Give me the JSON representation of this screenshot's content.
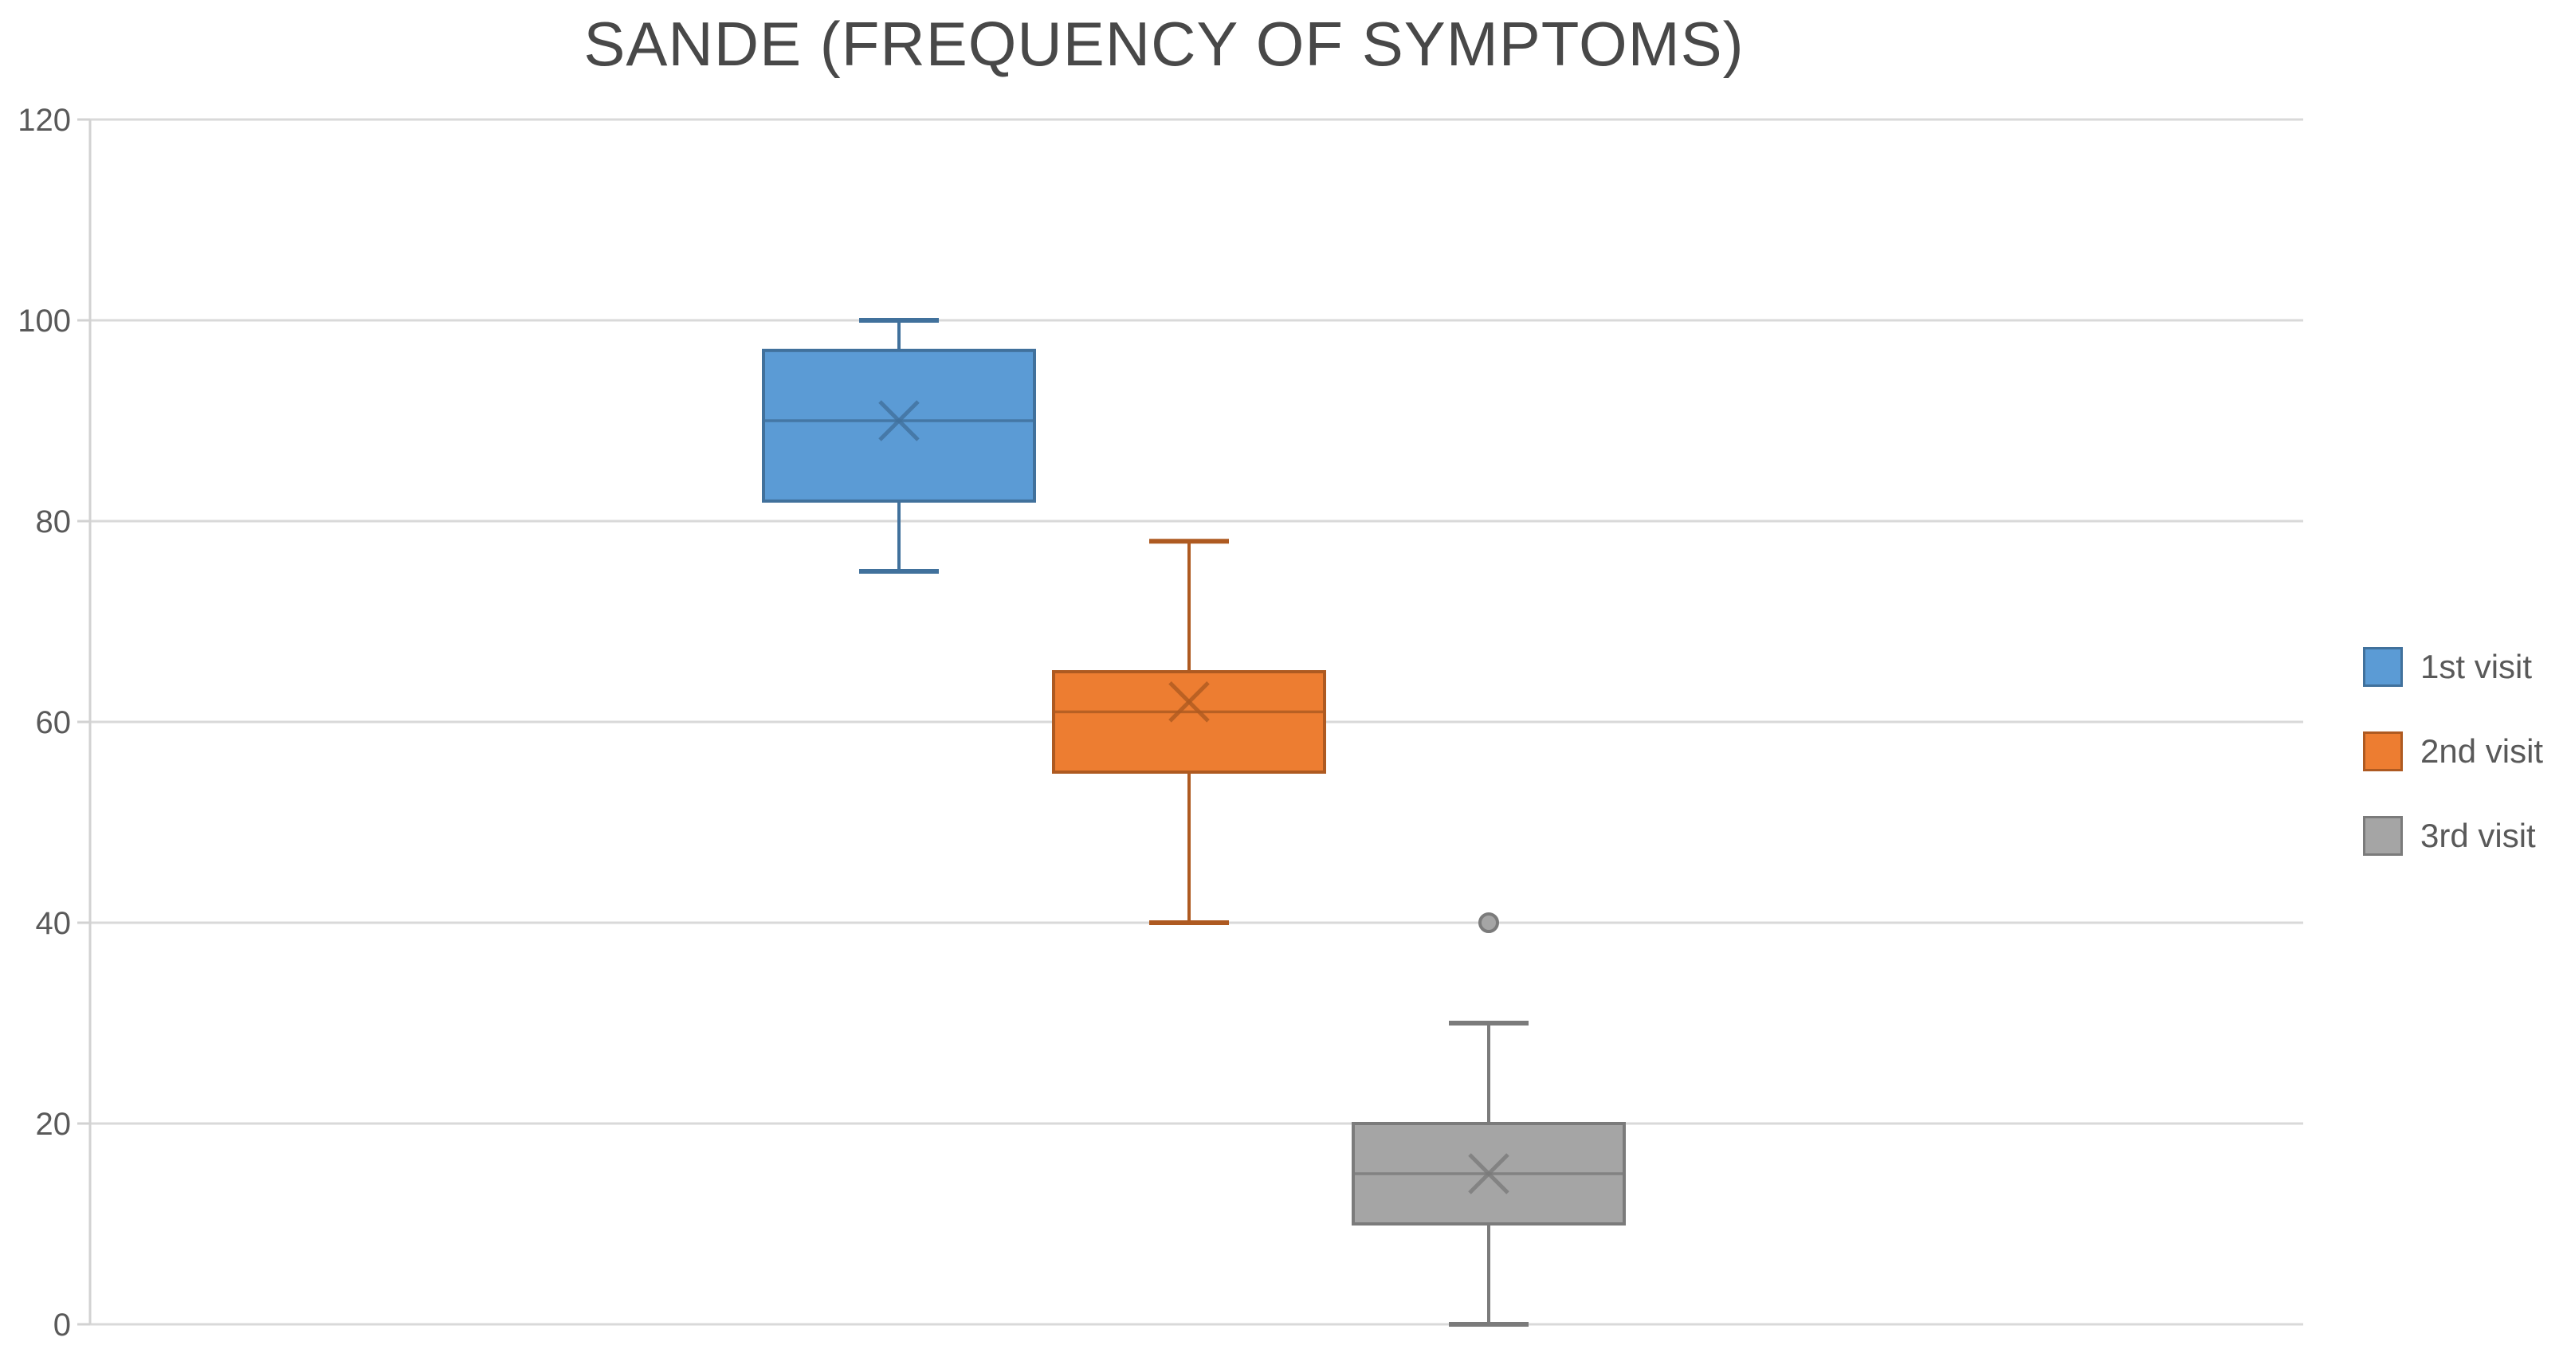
{
  "chart_data": {
    "type": "box",
    "title": "SANDE (FREQUENCY OF SYMPTOMS)",
    "xlabel": "",
    "ylabel": "",
    "ylim": [
      0,
      120
    ],
    "ytick_step": 20,
    "ytick_labels": [
      "0",
      "20",
      "40",
      "60",
      "80",
      "100",
      "120"
    ],
    "grid": true,
    "legend_position": "right",
    "categories": [
      "1st visit",
      "2nd visit",
      "3rd visit"
    ],
    "series": [
      {
        "name": "1st visit",
        "fill": "#5B9BD5",
        "stroke": "#41719C",
        "mean_marker": "x",
        "min": 75,
        "q1": 82,
        "median": 90,
        "q3": 97,
        "max": 100,
        "mean": 90,
        "outliers": []
      },
      {
        "name": "2nd visit",
        "fill": "#ED7D31",
        "stroke": "#AE5A21",
        "mean_marker": "x",
        "min": 40,
        "q1": 55,
        "median": 61,
        "q3": 65,
        "max": 78,
        "mean": 62,
        "outliers": []
      },
      {
        "name": "3rd visit",
        "fill": "#A5A5A5",
        "stroke": "#7B7B7B",
        "mean_marker": "x",
        "min": 0,
        "q1": 10,
        "median": 15,
        "q3": 20,
        "max": 30,
        "mean": 15,
        "outliers": [
          40
        ]
      }
    ],
    "colors": {
      "gridline": "#D9D9D9",
      "axis_line": "#D2D2D2",
      "tick_label": "#595959",
      "title": "#484848",
      "legend_text": "#595959",
      "background": "#FFFFFF"
    }
  }
}
